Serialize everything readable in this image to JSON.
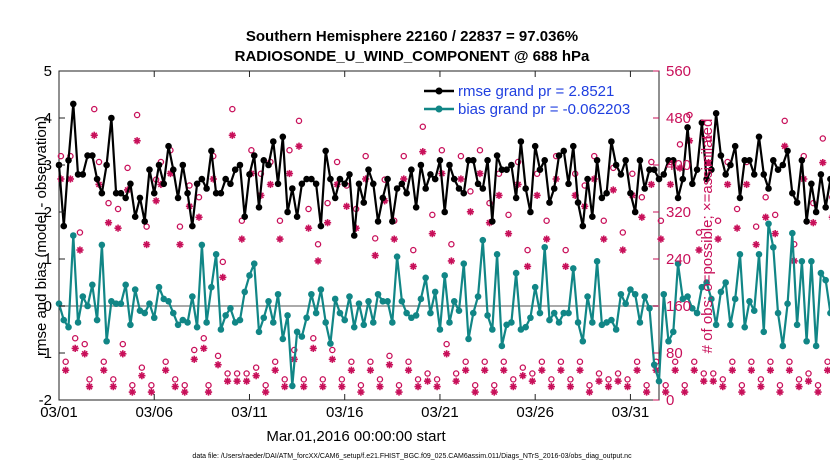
{
  "chart_data": {
    "type": "line",
    "title": "Southern Hemisphere 22160 / 22837 = 97.036%",
    "subtitle": "RADIOSONDE_U_WIND_COMPONENT @ 688 hPa",
    "xlabel": "Mar.01,2016 00:00:00 start",
    "ylabel_left": "rmse and bias (model - observation)",
    "ylabel_right": "# of obs: o=possible; ×=assimilated",
    "xlim": [
      0,
      31.5
    ],
    "ylim_left": [
      -2,
      5
    ],
    "ylim_right": [
      0,
      560
    ],
    "x_ticks": [
      0,
      5,
      10,
      15,
      20,
      25,
      30
    ],
    "x_tick_labels": [
      "03/01",
      "03/06",
      "03/11",
      "03/16",
      "03/21",
      "03/26",
      "03/31"
    ],
    "y_ticks_left": [
      -2,
      -1,
      0,
      1,
      2,
      3,
      4,
      5
    ],
    "y_tick_labels_left": [
      "-2",
      "-1",
      "0",
      "1",
      "2",
      "3",
      "4",
      "5"
    ],
    "y_ticks_right": [
      0,
      80,
      160,
      240,
      320,
      400,
      480,
      560
    ],
    "y_tick_labels_right": [
      "0",
      "80",
      "160",
      "240",
      "320",
      "400",
      "480",
      "560"
    ],
    "legend_position": "top-right",
    "series": [
      {
        "name": "rmse grand pr = 2.8521",
        "color": "#000000",
        "marker": "filled-circle",
        "axis": "left",
        "values": [
          3.0,
          1.7,
          3.1,
          4.3,
          2.8,
          2.8,
          3.2,
          3.2,
          2.7,
          2.4,
          3.0,
          4.0,
          2.4,
          2.4,
          2.3,
          2.6,
          1.9,
          2.3,
          1.8,
          2.9,
          2.4,
          3.0,
          2.6,
          3.4,
          2.9,
          2.3,
          3.0,
          2.4,
          1.7,
          2.6,
          2.7,
          2.5,
          3.3,
          2.4,
          2.4,
          2.7,
          2.6,
          2.9,
          3.0,
          1.9,
          2.8,
          3.2,
          2.1,
          3.1,
          3.0,
          3.5,
          2.6,
          3.6,
          2.0,
          2.5,
          1.9,
          2.6,
          2.7,
          2.7,
          2.6,
          1.7,
          3.3,
          2.7,
          2.3,
          2.7,
          2.6,
          2.8,
          1.5,
          2.6,
          2.2,
          2.9,
          2.6,
          1.8,
          2.3,
          2.7,
          1.8,
          2.5,
          2.6,
          2.4,
          2.9,
          2.1,
          3.0,
          2.5,
          2.8,
          2.7,
          3.1,
          2.0,
          3.0,
          2.7,
          2.5,
          2.4,
          3.1,
          3.1,
          2.6,
          2.5,
          3.1,
          1.8,
          3.2,
          2.9,
          2.9,
          3.0,
          2.3,
          3.5,
          2.5,
          2.0,
          3.4,
          2.9,
          3.1,
          2.2,
          2.5,
          3.2,
          3.3,
          2.6,
          3.4,
          2.2,
          1.7,
          2.7,
          1.9,
          3.1,
          2.3,
          2.4,
          3.5,
          3.0,
          2.8,
          3.1,
          2.4,
          2.0,
          3.1,
          2.5,
          2.9,
          2.9,
          2.7,
          2.8,
          3.1,
          3.1,
          2.3,
          2.7,
          3.8,
          2.6,
          2.9,
          3.9,
          2.7,
          2.9,
          4.1,
          3.2,
          2.8,
          3.0,
          3.4,
          2.3,
          3.1,
          3.1,
          2.8,
          3.6,
          2.8,
          2.5,
          3.1,
          2.9,
          3.0,
          3.3,
          2.4,
          2.2,
          3.1,
          1.8,
          2.6,
          2.0,
          2.8,
          2.1,
          2.7,
          3.0,
          1.9,
          2.6,
          2.8,
          2.7,
          3.1,
          2.3,
          1.9,
          2.9,
          2.2,
          2.8,
          2.6,
          2.0
        ],
        "x_step": 0.25
      },
      {
        "name": "bias grand pr = -0.062203",
        "color": "#118686",
        "marker": "filled-circle",
        "axis": "left",
        "values": [
          0.05,
          -0.3,
          -0.45,
          1.5,
          -0.35,
          0.2,
          0.0,
          0.45,
          -0.3,
          1.3,
          -0.75,
          0.1,
          0.05,
          0.05,
          0.45,
          -0.4,
          0.35,
          -0.1,
          -0.15,
          0.05,
          -0.25,
          0.4,
          0.15,
          0.1,
          -0.15,
          -0.4,
          -0.3,
          -0.35,
          0.2,
          -0.45,
          1.3,
          -0.35,
          0.4,
          1.1,
          -0.5,
          -0.2,
          -0.05,
          -0.35,
          -0.3,
          0.3,
          0.65,
          0.9,
          -0.55,
          -0.25,
          0.1,
          -0.35,
          0.25,
          -0.7,
          -0.2,
          -1.7,
          -0.55,
          -0.65,
          -0.25,
          0.25,
          -0.15,
          0.35,
          -0.35,
          -0.8,
          0.15,
          -0.15,
          -0.3,
          0.2,
          -0.45,
          0.05,
          -0.4,
          0.1,
          -0.35,
          0.25,
          0.1,
          0.1,
          -0.35,
          1.05,
          0.1,
          -0.15,
          -0.25,
          -0.2,
          0.15,
          0.6,
          -0.15,
          0.3,
          -0.5,
          0.65,
          -0.35,
          0.1,
          -0.1,
          0.9,
          -0.7,
          -0.15,
          0.2,
          1.4,
          -0.2,
          -0.5,
          1.1,
          -0.85,
          -0.4,
          -0.35,
          0.7,
          -0.5,
          -0.45,
          -0.25,
          0.4,
          -0.15,
          1.25,
          -0.3,
          -0.15,
          -0.35,
          -0.15,
          -0.15,
          0.8,
          -0.35,
          -0.75,
          0.2,
          -0.35,
          0.95,
          -0.4,
          -0.35,
          -0.3,
          -0.5,
          0.25,
          0.05,
          0.35,
          0.25,
          -0.35,
          0.2,
          -0.05,
          -1.25,
          -1.6,
          0.25,
          -0.75,
          -0.55,
          0.9,
          0.15,
          0.2,
          -0.05,
          -0.15,
          0.4,
          0.5,
          0.15,
          -0.4,
          0.3,
          0.5,
          -0.4,
          0.15,
          1.1,
          -0.45,
          0.1,
          -0.1,
          1.1,
          -0.55,
          1.75,
          1.25,
          -0.15,
          -0.85,
          0.05,
          1.55,
          -0.4,
          0.95,
          -0.75,
          0.95,
          -0.85,
          0.7,
          0.55,
          -0.15,
          0.25,
          -0.5,
          0.25,
          0.65,
          0.05,
          -0.45,
          0.4,
          -0.1,
          1.0,
          0.2,
          0.05
        ],
        "x_step": 0.25,
        "x_start": 0.0
      },
      {
        "name": "obs possible",
        "color": "#c8105a",
        "marker": "open-circle",
        "axis": "right",
        "x_step": 0.25,
        "values": [
          410,
          60,
          410,
          100,
          280,
          90,
          30,
          490,
          400,
          60,
          330,
          30,
          320,
          90,
          390,
          20,
          480,
          50,
          290,
          20,
          370,
          400,
          60,
          420,
          30,
          290,
          20,
          360,
          80,
          340,
          100,
          20,
          410,
          70,
          230,
          40,
          490,
          40,
          300,
          40,
          420,
          50,
          380,
          20,
          400,
          60,
          300,
          30,
          420,
          80,
          470,
          30,
          320,
          100,
          260,
          30,
          330,
          80,
          400,
          30,
          360,
          60,
          320,
          20,
          410,
          60,
          270,
          30,
          370,
          70,
          300,
          20,
          410,
          60,
          250,
          30,
          460,
          40,
          310,
          30,
          420,
          90,
          260,
          40,
          410,
          60,
          350,
          20,
          420,
          60,
          330,
          20,
          380,
          60,
          310,
          30,
          400,
          50,
          250,
          40,
          380,
          60,
          300,
          30,
          410,
          60,
          250,
          30,
          380,
          60,
          360,
          20,
          410,
          40,
          300,
          30,
          390,
          40,
          280,
          30,
          380,
          60,
          340,
          20,
          400,
          60,
          300,
          20,
          400,
          60,
          430,
          20,
          480,
          60,
          280,
          40,
          440,
          40,
          300,
          30,
          400,
          60,
          320,
          20,
          400,
          60,
          290,
          30,
          340,
          60,
          310,
          20,
          470,
          60,
          260,
          30,
          410,
          40,
          330,
          20,
          440,
          60,
          340,
          30,
          410,
          60,
          340,
          20,
          410,
          60,
          240,
          40
        ],
        "x_start": 0.0
      }
    ]
  },
  "footer": "data file: /Users/raeder/DAI/ATM_forcXX/CAM6_setup/f.e21.FHIST_BGC.f09_025.CAM6assim.011/Diags_NTrS_2016-03/obs_diag_output.nc"
}
